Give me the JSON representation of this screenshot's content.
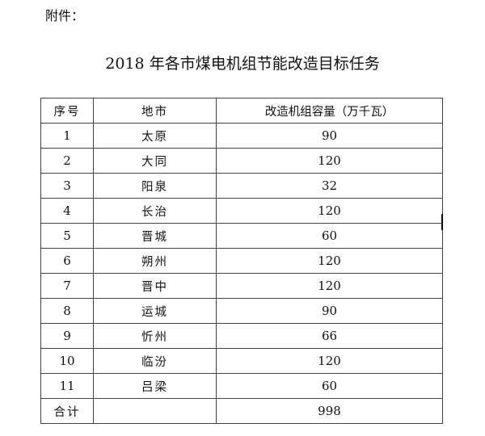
{
  "attachment_label": "附件：",
  "title": "2018 年各市煤电机组节能改造目标任务",
  "table": {
    "headers": [
      "序号",
      "地市",
      "改造机组容量（万千瓦）"
    ],
    "rows": [
      [
        "1",
        "太原",
        "90"
      ],
      [
        "2",
        "大同",
        "120"
      ],
      [
        "3",
        "阳泉",
        "32"
      ],
      [
        "4",
        "长治",
        "120"
      ],
      [
        "5",
        "晋城",
        "60"
      ],
      [
        "6",
        "朔州",
        "120"
      ],
      [
        "7",
        "晋中",
        "120"
      ],
      [
        "8",
        "运城",
        "90"
      ],
      [
        "9",
        "忻州",
        "66"
      ],
      [
        "10",
        "临汾",
        "120"
      ],
      [
        "11",
        "吕梁",
        "60"
      ]
    ],
    "total": [
      "合计",
      "",
      "998"
    ]
  }
}
